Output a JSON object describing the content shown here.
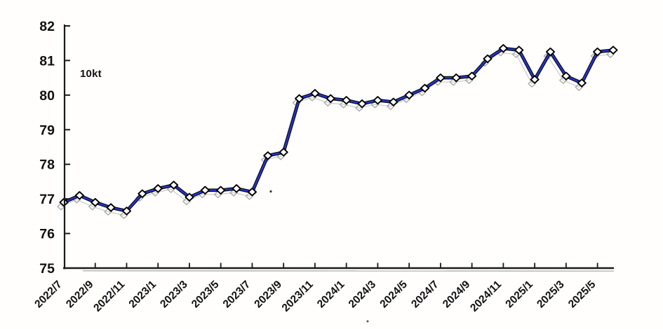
{
  "chart_data": {
    "type": "line",
    "title": "",
    "unit_label": "10kt",
    "x": [
      "2022/7",
      "2022/8",
      "2022/9",
      "2022/10",
      "2022/11",
      "2022/12",
      "2023/1",
      "2023/2",
      "2023/3",
      "2023/4",
      "2023/5",
      "2023/6",
      "2023/7",
      "2023/8",
      "2023/9",
      "2023/10",
      "2023/11",
      "2023/12",
      "2024/1",
      "2024/2",
      "2024/3",
      "2024/4",
      "2024/5",
      "2024/6",
      "2024/7",
      "2024/8",
      "2024/9",
      "2024/10",
      "2024/11",
      "2024/12",
      "2025/1",
      "2025/2",
      "2025/3",
      "2025/4",
      "2025/5",
      "2025/6"
    ],
    "values": [
      76.9,
      77.1,
      76.9,
      76.75,
      76.65,
      77.15,
      77.3,
      77.4,
      77.05,
      77.25,
      77.25,
      77.3,
      77.2,
      78.25,
      78.35,
      79.9,
      80.05,
      79.9,
      79.85,
      79.75,
      79.85,
      79.8,
      80.0,
      80.2,
      80.5,
      80.5,
      80.55,
      81.05,
      81.35,
      81.3,
      80.45,
      81.25,
      80.55,
      80.35,
      81.25,
      81.3
    ],
    "x_tick_labels": [
      "2022/7",
      "2022/9",
      "2022/11",
      "2023/1",
      "2023/3",
      "2023/5",
      "2023/7",
      "2023/9",
      "2023/11",
      "2024/1",
      "2024/3",
      "2024/5",
      "2024/7",
      "2024/9",
      "2024/11",
      "2025/1",
      "2025/3",
      "2025/5"
    ],
    "yticks": [
      75,
      76,
      77,
      78,
      79,
      80,
      81,
      82
    ],
    "ylim": [
      75,
      82
    ],
    "grid": "off",
    "legend_position": "none",
    "line_color": "#2434d4",
    "line_edge_color": "#0e0e16",
    "marker_fill": "#ffffff",
    "marker_edge": "#000000",
    "ghost_color": "#a2a2a2",
    "axis_color": "#1a1a1a",
    "label_color": "#111111"
  }
}
